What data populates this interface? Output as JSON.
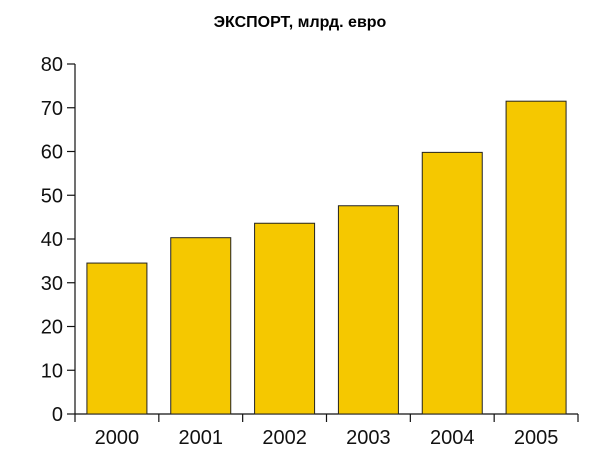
{
  "chart_data": {
    "type": "bar",
    "title": "ЭКСПОРТ, млрд. евро",
    "xlabel": "",
    "ylabel": "",
    "categories": [
      "2000",
      "2001",
      "2002",
      "2003",
      "2004",
      "2005"
    ],
    "values": [
      34.5,
      40.3,
      43.6,
      47.6,
      59.8,
      71.5
    ],
    "ylim": [
      0,
      80
    ],
    "yticks": [
      "0",
      "10",
      "20",
      "30",
      "40",
      "50",
      "60",
      "70",
      "80"
    ],
    "grid": false,
    "legend": "none",
    "bar_color": "#f5c800",
    "bar_edge_color": "#222222"
  }
}
